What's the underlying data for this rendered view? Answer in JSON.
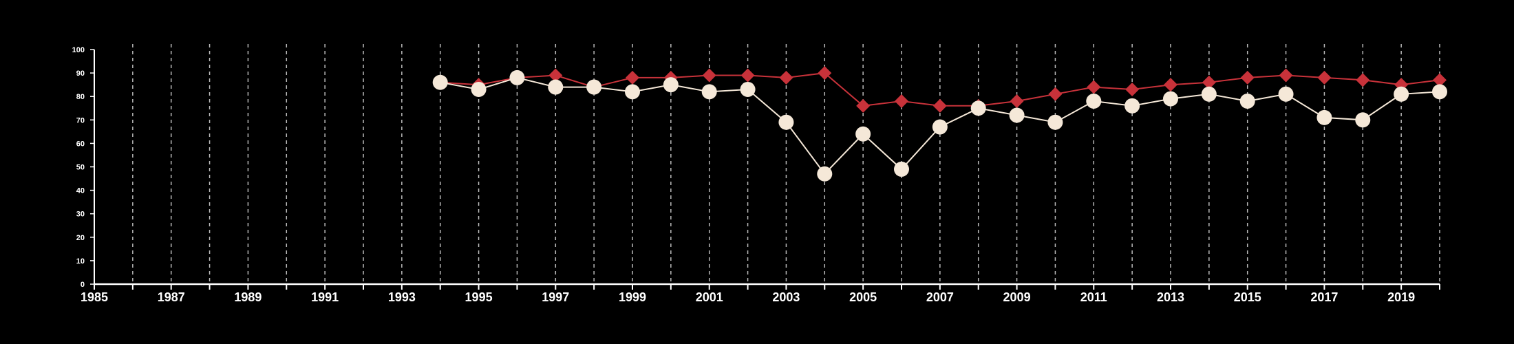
{
  "chart_data": {
    "type": "line",
    "title": "",
    "xlabel": "",
    "ylabel": "",
    "xlim": [
      1985,
      2020
    ],
    "ylim": [
      0,
      100
    ],
    "yticks": [
      0,
      10,
      20,
      30,
      40,
      50,
      60,
      70,
      80,
      90,
      100
    ],
    "xticks": [
      1985,
      1987,
      1989,
      1991,
      1993,
      1995,
      1997,
      1999,
      2001,
      2003,
      2005,
      2007,
      2009,
      2011,
      2013,
      2015,
      2017,
      2019
    ],
    "grid": "vertical-dashed",
    "colors": {
      "background": "#000000",
      "axis": "#ffffff",
      "grid": "#bbbbbb",
      "red_series": "#c8323a",
      "white_series": "#f5e8d8"
    },
    "x": [
      1994,
      1995,
      1996,
      1997,
      1998,
      1999,
      2000,
      2001,
      2002,
      2003,
      2004,
      2005,
      2006,
      2007,
      2008,
      2009,
      2010,
      2011,
      2012,
      2013,
      2014,
      2015,
      2016,
      2017,
      2018,
      2019,
      2020
    ],
    "series": [
      {
        "marker": "diamond",
        "color": "#c8323a",
        "values": [
          86,
          85,
          88,
          89,
          84,
          88,
          88,
          89,
          89,
          88,
          90,
          76,
          78,
          76,
          76,
          78,
          81,
          84,
          83,
          85,
          86,
          88,
          89,
          88,
          87,
          85,
          87
        ]
      },
      {
        "marker": "circle",
        "color": "#f5e8d8",
        "values": [
          86,
          83,
          88,
          84,
          84,
          82,
          85,
          82,
          83,
          69,
          47,
          64,
          49,
          67,
          75,
          72,
          69,
          78,
          76,
          79,
          81,
          78,
          81,
          71,
          70,
          81,
          82
        ]
      }
    ]
  }
}
